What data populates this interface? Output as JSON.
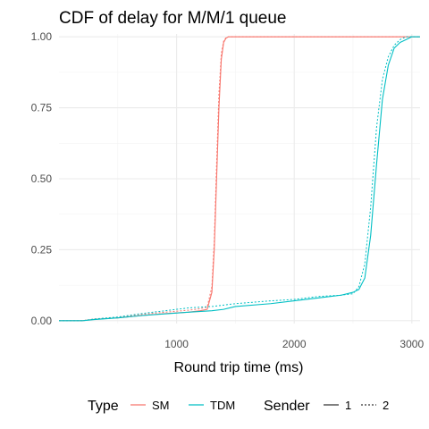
{
  "chart_data": {
    "type": "line",
    "title": "CDF of delay for M/M/1 queue",
    "xlabel": "Round trip time (ms)",
    "ylabel": "",
    "xlim": [
      0,
      3070
    ],
    "ylim": [
      -0.01,
      1.01
    ],
    "x_ticks": [
      1000,
      2000,
      3000
    ],
    "x_tick_labels": [
      "1000",
      "2000",
      "3000"
    ],
    "y_ticks": [
      0,
      0.25,
      0.5,
      0.75,
      1
    ],
    "y_tick_labels": [
      "0.00",
      "0.25",
      "0.50",
      "0.75",
      "1.00"
    ],
    "grid": true,
    "legend_position": "bottom",
    "legend": {
      "type_title": "Type",
      "type_entries": [
        {
          "label": "SM",
          "color": "#F8766D"
        },
        {
          "label": "TDM",
          "color": "#00BFC4"
        }
      ],
      "sender_title": "Sender",
      "sender_entries": [
        {
          "label": "1",
          "linetype": "solid"
        },
        {
          "label": "2",
          "linetype": "dotted"
        }
      ]
    },
    "series": [
      {
        "type": "SM",
        "sender": "1",
        "color": "#F8766D",
        "linetype": "solid",
        "x": [
          0,
          200,
          300,
          500,
          700,
          900,
          1100,
          1200,
          1260,
          1300,
          1320,
          1340,
          1360,
          1380,
          1400,
          1420,
          1440,
          1460,
          3070
        ],
        "y": [
          0,
          0,
          0.005,
          0.01,
          0.018,
          0.025,
          0.03,
          0.035,
          0.04,
          0.1,
          0.25,
          0.5,
          0.75,
          0.92,
          0.98,
          0.995,
          1.0,
          1.0,
          1.0
        ]
      },
      {
        "type": "SM",
        "sender": "2",
        "color": "#F8766D",
        "linetype": "dotted",
        "x": [
          0,
          200,
          300,
          500,
          700,
          900,
          1100,
          1200,
          1260,
          1300,
          1320,
          1340,
          1360,
          1380,
          1400,
          1420,
          1440,
          1460,
          3070
        ],
        "y": [
          0,
          0,
          0.006,
          0.012,
          0.022,
          0.03,
          0.037,
          0.042,
          0.048,
          0.12,
          0.28,
          0.55,
          0.8,
          0.94,
          0.985,
          0.997,
          1.0,
          1.0,
          1.0
        ]
      },
      {
        "type": "TDM",
        "sender": "1",
        "color": "#00BFC4",
        "linetype": "solid",
        "x": [
          0,
          200,
          300,
          500,
          700,
          900,
          1100,
          1300,
          1400,
          1500,
          1800,
          2000,
          2200,
          2400,
          2500,
          2550,
          2600,
          2650,
          2700,
          2750,
          2800,
          2850,
          2900,
          2950,
          3000,
          3070
        ],
        "y": [
          0,
          0,
          0.004,
          0.01,
          0.018,
          0.024,
          0.03,
          0.035,
          0.04,
          0.05,
          0.06,
          0.07,
          0.08,
          0.09,
          0.1,
          0.11,
          0.15,
          0.3,
          0.55,
          0.78,
          0.9,
          0.96,
          0.98,
          0.99,
          1.0,
          1.0
        ]
      },
      {
        "type": "TDM",
        "sender": "2",
        "color": "#00BFC4",
        "linetype": "dotted",
        "x": [
          0,
          200,
          300,
          500,
          700,
          900,
          1100,
          1300,
          1400,
          1500,
          1800,
          2000,
          2200,
          2400,
          2500,
          2550,
          2600,
          2650,
          2700,
          2750,
          2800,
          2850,
          2900,
          2950,
          3000,
          3070
        ],
        "y": [
          0,
          0,
          0.006,
          0.013,
          0.025,
          0.035,
          0.045,
          0.05,
          0.055,
          0.06,
          0.07,
          0.075,
          0.085,
          0.09,
          0.095,
          0.12,
          0.2,
          0.4,
          0.68,
          0.85,
          0.93,
          0.97,
          0.99,
          1.0,
          1.0,
          1.0
        ]
      }
    ]
  }
}
